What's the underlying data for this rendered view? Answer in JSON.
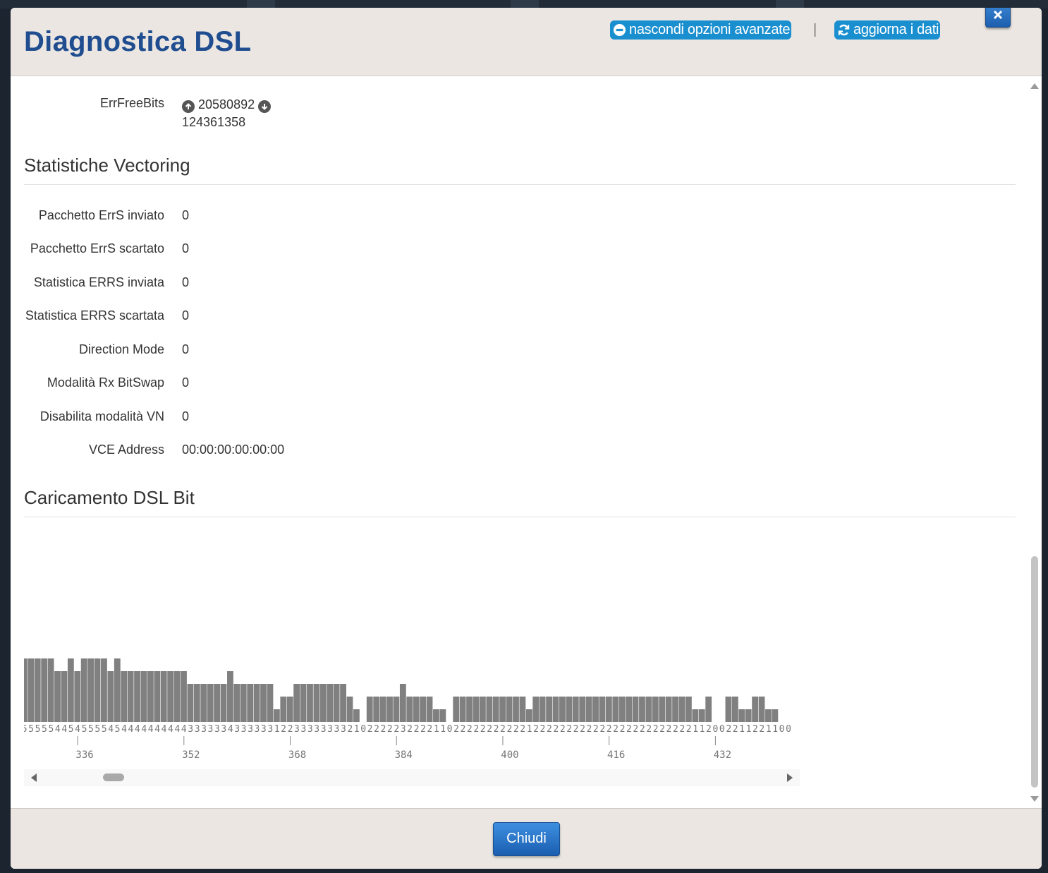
{
  "dialog": {
    "title": "Diagnostica DSL",
    "hide_advanced_label": "nascondi opzioni avanzate",
    "separator": "|",
    "refresh_label": "aggiorna i dati",
    "close_button_label": "Chiudi"
  },
  "errfree": {
    "label": "ErrFreeBits",
    "upstream": "20580892",
    "downstream": "124361358"
  },
  "vectoring": {
    "title": "Statistiche Vectoring",
    "rows": [
      {
        "label": "Pacchetto ErrS inviato",
        "value": "0"
      },
      {
        "label": "Pacchetto ErrS scartato",
        "value": "0"
      },
      {
        "label": "Statistica ERRS inviata",
        "value": "0"
      },
      {
        "label": "Statistica ERRS scartata",
        "value": "0"
      },
      {
        "label": "Direction Mode",
        "value": "0"
      },
      {
        "label": "Modalità Rx BitSwap",
        "value": "0"
      },
      {
        "label": "Disabilita modalità VN",
        "value": "0"
      },
      {
        "label": "VCE Address",
        "value": "00:00:00:00:00:00"
      }
    ]
  },
  "bitload": {
    "title": "Caricamento DSL Bit"
  },
  "chart_data": {
    "type": "bar",
    "title": "",
    "xlabel": "",
    "ylabel": "",
    "first_tone": 328,
    "ticks": [
      336,
      352,
      368,
      384,
      400,
      416,
      432
    ],
    "values": [
      5,
      5,
      5,
      5,
      5,
      4,
      4,
      5,
      4,
      5,
      5,
      5,
      5,
      4,
      5,
      4,
      4,
      4,
      4,
      4,
      4,
      4,
      4,
      4,
      4,
      3,
      3,
      3,
      3,
      3,
      3,
      4,
      3,
      3,
      3,
      3,
      3,
      3,
      1,
      2,
      2,
      3,
      3,
      3,
      3,
      3,
      3,
      3,
      3,
      2,
      1,
      0,
      2,
      2,
      2,
      2,
      2,
      3,
      2,
      2,
      2,
      2,
      1,
      1,
      0,
      2,
      2,
      2,
      2,
      2,
      2,
      2,
      2,
      2,
      2,
      2,
      1,
      2,
      2,
      2,
      2,
      2,
      2,
      2,
      2,
      2,
      2,
      2,
      2,
      2,
      2,
      2,
      2,
      2,
      2,
      2,
      2,
      2,
      2,
      2,
      2,
      1,
      1,
      2,
      0,
      0,
      2,
      2,
      1,
      1,
      2,
      2,
      1,
      1,
      0,
      0
    ],
    "bar_color": "#808080"
  },
  "colors": {
    "title": "#1f4d8f",
    "pill": "#1a8fd0",
    "header_bg": "#ebe6e2",
    "button": "#2a75c8"
  }
}
